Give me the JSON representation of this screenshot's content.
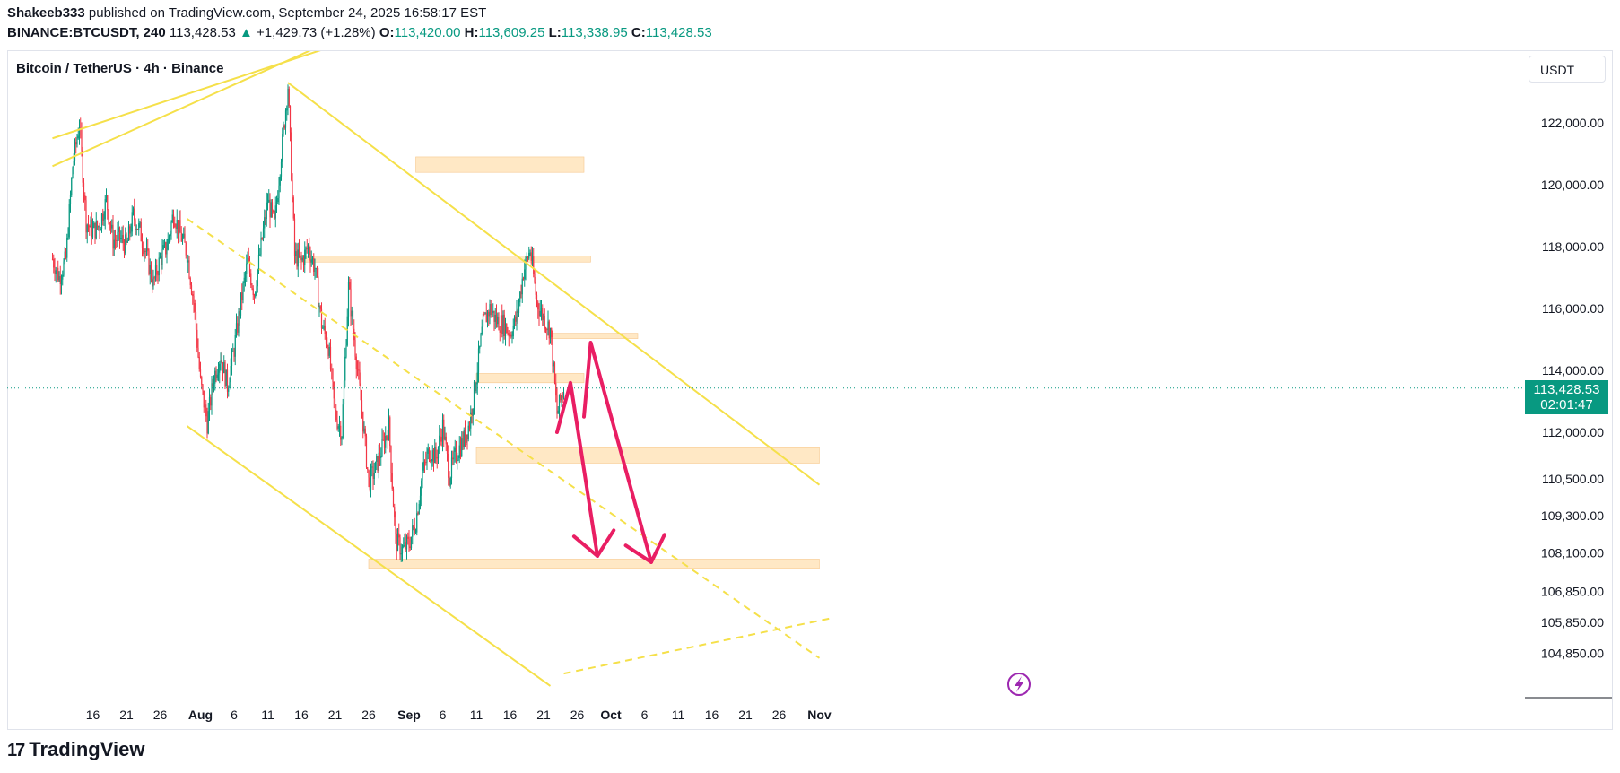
{
  "header": {
    "author": "Shakeeb333",
    "published_text": "published on TradingView.com, September 24, 2025 16:58:17 EST",
    "symbol": "BINANCE:BTCUSDT, 240",
    "last": "113,428.53",
    "change_arrow": "▲",
    "change": "+1,429.73 (+1.28%)",
    "o_label": "O:",
    "o_value": "113,420.00",
    "h_label": "H:",
    "h_value": "113,609.25",
    "l_label": "L:",
    "l_value": "113,338.95",
    "c_label": "C:",
    "c_value": "113,428.53"
  },
  "legend": "Bitcoin / TetherUS · 4h · Binance",
  "unit_button": "USDT",
  "price_label": {
    "price": "113,428.53",
    "countdown": "02:01:47"
  },
  "logo": {
    "mark": "17",
    "text": "TradingView"
  },
  "colors": {
    "up": "#089981",
    "down": "#f23645",
    "trendline": "#f5e04a",
    "zone": "#ffe0b2",
    "arrow": "#e91e63",
    "icon": "#9c27b0"
  },
  "chart_data": {
    "type": "candlestick",
    "interval": "4h",
    "axis": {
      "y_ticks": [
        122000,
        120000,
        118000,
        116000,
        114000,
        112000,
        110500,
        109300,
        108100,
        106850,
        105850,
        104850
      ],
      "y_tick_labels": [
        "122,000.00",
        "120,000.00",
        "118,000.00",
        "116,000.00",
        "114,000.00",
        "112,000.00",
        "110,500.00",
        "109,300.00",
        "108,100.00",
        "106,850.00",
        "105,850.00",
        "104,850.00"
      ],
      "x_ticks": [
        {
          "label": "16",
          "date": "2025-07-16"
        },
        {
          "label": "21",
          "date": "2025-07-21"
        },
        {
          "label": "26",
          "date": "2025-07-26"
        },
        {
          "label": "Aug",
          "date": "2025-08-01",
          "bold": true
        },
        {
          "label": "6",
          "date": "2025-08-06"
        },
        {
          "label": "11",
          "date": "2025-08-11"
        },
        {
          "label": "16",
          "date": "2025-08-16"
        },
        {
          "label": "21",
          "date": "2025-08-21"
        },
        {
          "label": "26",
          "date": "2025-08-26"
        },
        {
          "label": "Sep",
          "date": "2025-09-01",
          "bold": true
        },
        {
          "label": "6",
          "date": "2025-09-06"
        },
        {
          "label": "11",
          "date": "2025-09-11"
        },
        {
          "label": "16",
          "date": "2025-09-16"
        },
        {
          "label": "21",
          "date": "2025-09-21"
        },
        {
          "label": "26",
          "date": "2025-09-26"
        },
        {
          "label": "Oct",
          "date": "2025-10-01",
          "bold": true
        },
        {
          "label": "6",
          "date": "2025-10-06"
        },
        {
          "label": "11",
          "date": "2025-10-11"
        },
        {
          "label": "16",
          "date": "2025-10-16"
        },
        {
          "label": "21",
          "date": "2025-10-21"
        },
        {
          "label": "26",
          "date": "2025-10-26"
        },
        {
          "label": "Nov",
          "date": "2025-11-01",
          "bold": true
        }
      ]
    },
    "last_price": 113428.53,
    "price_path": [
      [
        "2025-07-10",
        117600
      ],
      [
        "2025-07-11",
        117000
      ],
      [
        "2025-07-12",
        117600
      ],
      [
        "2025-07-13",
        120600
      ],
      [
        "2025-07-14",
        122000
      ],
      [
        "2025-07-15",
        118800
      ],
      [
        "2025-07-16",
        118500
      ],
      [
        "2025-07-17",
        118700
      ],
      [
        "2025-07-18",
        119500
      ],
      [
        "2025-07-19",
        118200
      ],
      [
        "2025-07-20",
        118300
      ],
      [
        "2025-07-21",
        118000
      ],
      [
        "2025-07-22",
        119000
      ],
      [
        "2025-07-23",
        118500
      ],
      [
        "2025-07-24",
        117700
      ],
      [
        "2025-07-25",
        116800
      ],
      [
        "2025-07-26",
        117600
      ],
      [
        "2025-07-27",
        118000
      ],
      [
        "2025-07-28",
        119100
      ],
      [
        "2025-07-29",
        118400
      ],
      [
        "2025-07-30",
        117800
      ],
      [
        "2025-07-31",
        116200
      ],
      [
        "2025-08-01",
        113600
      ],
      [
        "2025-08-02",
        112300
      ],
      [
        "2025-08-03",
        113800
      ],
      [
        "2025-08-04",
        114500
      ],
      [
        "2025-08-05",
        113500
      ],
      [
        "2025-08-06",
        114700
      ],
      [
        "2025-08-07",
        116200
      ],
      [
        "2025-08-08",
        117500
      ],
      [
        "2025-08-09",
        116500
      ],
      [
        "2025-08-10",
        118000
      ],
      [
        "2025-08-11",
        119500
      ],
      [
        "2025-08-12",
        118700
      ],
      [
        "2025-08-13",
        121000
      ],
      [
        "2025-08-14",
        123200
      ],
      [
        "2025-08-15",
        117700
      ],
      [
        "2025-08-16",
        117500
      ],
      [
        "2025-08-17",
        118000
      ],
      [
        "2025-08-18",
        117300
      ],
      [
        "2025-08-19",
        115500
      ],
      [
        "2025-08-20",
        114800
      ],
      [
        "2025-08-21",
        112600
      ],
      [
        "2025-08-22",
        112000
      ],
      [
        "2025-08-23",
        116700
      ],
      [
        "2025-08-24",
        114700
      ],
      [
        "2025-08-25",
        112700
      ],
      [
        "2025-08-26",
        110400
      ],
      [
        "2025-08-27",
        110800
      ],
      [
        "2025-08-28",
        111500
      ],
      [
        "2025-08-29",
        112200
      ],
      [
        "2025-08-30",
        108500
      ],
      [
        "2025-08-31",
        108200
      ],
      [
        "2025-09-01",
        108400
      ],
      [
        "2025-09-02",
        109100
      ],
      [
        "2025-09-03",
        110700
      ],
      [
        "2025-09-04",
        111400
      ],
      [
        "2025-09-05",
        111200
      ],
      [
        "2025-09-06",
        112200
      ],
      [
        "2025-09-07",
        110600
      ],
      [
        "2025-09-08",
        111300
      ],
      [
        "2025-09-09",
        111700
      ],
      [
        "2025-09-10",
        112300
      ],
      [
        "2025-09-11",
        113800
      ],
      [
        "2025-09-12",
        115500
      ],
      [
        "2025-09-13",
        116000
      ],
      [
        "2025-09-14",
        115600
      ],
      [
        "2025-09-15",
        115500
      ],
      [
        "2025-09-16",
        115200
      ],
      [
        "2025-09-17",
        115700
      ],
      [
        "2025-09-18",
        117200
      ],
      [
        "2025-09-19",
        117900
      ],
      [
        "2025-09-20",
        116200
      ],
      [
        "2025-09-21",
        115700
      ],
      [
        "2025-09-22",
        115300
      ],
      [
        "2025-09-23",
        112600
      ],
      [
        "2025-09-24",
        113430
      ]
    ],
    "zones": [
      {
        "from": "2025-09-02",
        "to": "2025-09-27",
        "low": 120400,
        "high": 120900
      },
      {
        "from": "2025-08-15",
        "to": "2025-09-28",
        "low": 117500,
        "high": 117700
      },
      {
        "from": "2025-09-22",
        "to": "2025-10-05",
        "low": 115050,
        "high": 115200
      },
      {
        "from": "2025-09-11",
        "to": "2025-09-27",
        "low": 113600,
        "high": 113900
      },
      {
        "from": "2025-09-11",
        "to": "2025-11-01",
        "low": 111000,
        "high": 111500
      },
      {
        "from": "2025-08-26",
        "to": "2025-11-01",
        "low": 107600,
        "high": 107900
      }
    ],
    "trendlines": [
      {
        "style": "solid",
        "points": [
          [
            "2025-07-10",
            121500
          ],
          [
            "2025-08-21",
            124500
          ]
        ]
      },
      {
        "style": "solid",
        "points": [
          [
            "2025-07-10",
            120600
          ],
          [
            "2025-08-21",
            124700
          ]
        ]
      },
      {
        "style": "solid",
        "points": [
          [
            "2025-08-14",
            123300
          ],
          [
            "2025-11-01",
            110300
          ]
        ]
      },
      {
        "style": "solid",
        "points": [
          [
            "2025-07-30",
            112200
          ],
          [
            "2025-09-22",
            103800
          ]
        ]
      },
      {
        "style": "dashed",
        "points": [
          [
            "2025-07-30",
            118900
          ],
          [
            "2025-11-01",
            104700
          ]
        ]
      },
      {
        "style": "dashed",
        "points": [
          [
            "2025-09-24",
            104200
          ],
          [
            "2025-11-03",
            106000
          ]
        ]
      }
    ],
    "projection_arrows": [
      {
        "points": [
          [
            "2025-09-23",
            112000
          ],
          [
            "2025-09-25",
            113600
          ],
          [
            "2025-09-29",
            108000
          ]
        ]
      },
      {
        "points": [
          [
            "2025-09-27",
            112500
          ],
          [
            "2025-09-28",
            114900
          ],
          [
            "2025-10-07",
            107800
          ]
        ]
      }
    ]
  }
}
